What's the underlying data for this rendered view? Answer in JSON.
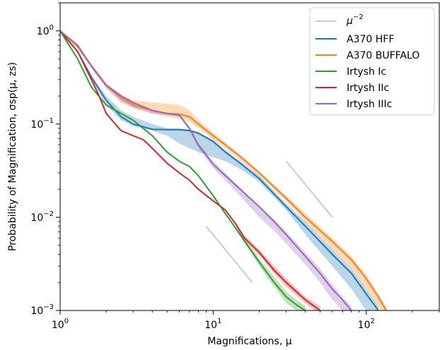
{
  "chart_data": {
    "type": "line",
    "xlabel": "Magnifications, μ",
    "ylabel": "Probability of Magnification, σsp(μ, zs)",
    "xscale": "log",
    "yscale": "log",
    "xlim": [
      1,
      300
    ],
    "ylim": [
      0.001,
      2
    ],
    "x_ticks": [
      {
        "value": 1,
        "base": "10",
        "exp": "0"
      },
      {
        "value": 10,
        "base": "10",
        "exp": "1"
      },
      {
        "value": 100,
        "base": "10",
        "exp": "2"
      }
    ],
    "y_ticks": [
      {
        "value": 1,
        "base": "10",
        "exp": "0"
      },
      {
        "value": 0.1,
        "base": "10",
        "exp": "−1"
      },
      {
        "value": 0.01,
        "base": "10",
        "exp": "−2"
      },
      {
        "value": 0.001,
        "base": "10",
        "exp": "−3"
      }
    ],
    "legend_position": "top-right",
    "reference_label": "μ",
    "reference_exp": "−2",
    "reference_color": "#cccccc",
    "reference_lines": [
      {
        "x": [
          9,
          18
        ],
        "y": [
          0.008,
          0.002
        ]
      },
      {
        "x": [
          30,
          60
        ],
        "y": [
          0.04,
          0.01
        ]
      }
    ],
    "series": [
      {
        "name": "A370 HFF",
        "color": "#1f77b4",
        "x": [
          1,
          1.3,
          1.6,
          2,
          2.5,
          3,
          4,
          5,
          6,
          7,
          8,
          10,
          12,
          15,
          20,
          30,
          40,
          60,
          80,
          100,
          120
        ],
        "y": [
          1,
          0.6,
          0.32,
          0.18,
          0.12,
          0.1,
          0.088,
          0.087,
          0.087,
          0.085,
          0.08,
          0.065,
          0.05,
          0.038,
          0.026,
          0.013,
          0.008,
          0.004,
          0.0025,
          0.0015,
          0.001
        ],
        "band_upper": [
          1,
          0.6,
          0.33,
          0.2,
          0.14,
          0.12,
          0.1,
          0.09,
          0.09,
          0.088,
          0.082,
          0.068,
          0.053,
          0.04,
          0.028,
          0.014,
          0.009,
          0.0045,
          0.0028,
          0.0017,
          0.0011
        ],
        "band_lower": [
          1,
          0.6,
          0.3,
          0.16,
          0.11,
          0.095,
          0.085,
          0.075,
          0.062,
          0.055,
          0.05,
          0.044,
          0.04,
          0.033,
          0.024,
          0.012,
          0.0065,
          0.003,
          0.0017,
          0.001,
          0.0006
        ]
      },
      {
        "name": "A370 BUFFALO",
        "color": "#ff7f0e",
        "x": [
          1,
          1.3,
          1.6,
          2,
          2.5,
          3,
          4,
          5,
          6,
          7,
          8,
          10,
          12,
          15,
          20,
          30,
          40,
          60,
          80,
          100,
          120,
          135
        ],
        "y": [
          1,
          0.68,
          0.42,
          0.26,
          0.19,
          0.16,
          0.14,
          0.13,
          0.128,
          0.12,
          0.1,
          0.075,
          0.06,
          0.045,
          0.03,
          0.016,
          0.01,
          0.0055,
          0.0035,
          0.0022,
          0.0014,
          0.001
        ],
        "band_upper": [
          1,
          0.7,
          0.45,
          0.28,
          0.2,
          0.18,
          0.17,
          0.165,
          0.16,
          0.14,
          0.11,
          0.08,
          0.063,
          0.047,
          0.031,
          0.017,
          0.011,
          0.006,
          0.0038,
          0.0024,
          0.0015,
          0.0011
        ],
        "band_lower": [
          1,
          0.65,
          0.4,
          0.25,
          0.18,
          0.15,
          0.13,
          0.12,
          0.115,
          0.105,
          0.09,
          0.068,
          0.055,
          0.041,
          0.028,
          0.015,
          0.009,
          0.0045,
          0.0028,
          0.0017,
          0.0011,
          0.0008
        ]
      },
      {
        "name": "Irtysh Ic",
        "color": "#2ca02c",
        "x": [
          1,
          1.3,
          1.6,
          2,
          2.5,
          3,
          4,
          5,
          6,
          7,
          8,
          10,
          12,
          15,
          20,
          25,
          30,
          35,
          40
        ],
        "y": [
          1,
          0.5,
          0.25,
          0.16,
          0.13,
          0.11,
          0.075,
          0.05,
          0.04,
          0.035,
          0.028,
          0.017,
          0.011,
          0.0065,
          0.0033,
          0.002,
          0.0014,
          0.00115,
          0.001
        ],
        "band_upper": [
          1,
          0.5,
          0.25,
          0.16,
          0.13,
          0.11,
          0.075,
          0.05,
          0.04,
          0.035,
          0.028,
          0.017,
          0.011,
          0.0068,
          0.0036,
          0.0023,
          0.0016,
          0.0013,
          0.00112
        ],
        "band_lower": [
          1,
          0.5,
          0.25,
          0.16,
          0.13,
          0.11,
          0.075,
          0.05,
          0.04,
          0.035,
          0.028,
          0.017,
          0.011,
          0.0062,
          0.003,
          0.0018,
          0.0012,
          0.001,
          0.0009
        ]
      },
      {
        "name": "Irtysh IIc",
        "color": "#d62728",
        "x": [
          1,
          1.3,
          1.6,
          1.8,
          2,
          2.5,
          3,
          3.5,
          4,
          5,
          6,
          7,
          8,
          10,
          12,
          14,
          16,
          20,
          25,
          30,
          40,
          50
        ],
        "y": [
          1,
          0.6,
          0.3,
          0.2,
          0.13,
          0.085,
          0.075,
          0.068,
          0.055,
          0.038,
          0.03,
          0.025,
          0.02,
          0.015,
          0.012,
          0.0085,
          0.006,
          0.0042,
          0.0027,
          0.002,
          0.0013,
          0.001
        ],
        "band_upper": [
          1,
          0.6,
          0.3,
          0.2,
          0.13,
          0.085,
          0.075,
          0.068,
          0.055,
          0.038,
          0.03,
          0.025,
          0.02,
          0.015,
          0.012,
          0.0088,
          0.0064,
          0.0045,
          0.003,
          0.0022,
          0.0014,
          0.0011
        ],
        "band_lower": [
          1,
          0.6,
          0.3,
          0.2,
          0.13,
          0.085,
          0.075,
          0.068,
          0.055,
          0.038,
          0.03,
          0.025,
          0.02,
          0.015,
          0.012,
          0.0082,
          0.0056,
          0.0039,
          0.0025,
          0.0018,
          0.0012,
          0.0009
        ]
      },
      {
        "name": "Irtysh IIIc",
        "color": "#9467bd",
        "x": [
          1,
          1.3,
          1.6,
          2,
          2.5,
          3,
          4,
          5,
          6,
          7,
          8,
          10,
          12,
          15,
          20,
          25,
          30,
          40,
          50,
          60,
          70,
          80
        ],
        "y": [
          1,
          0.7,
          0.42,
          0.26,
          0.2,
          0.17,
          0.14,
          0.13,
          0.125,
          0.09,
          0.06,
          0.037,
          0.028,
          0.02,
          0.013,
          0.009,
          0.0065,
          0.0038,
          0.0025,
          0.0017,
          0.0013,
          0.001
        ],
        "band_upper": [
          1,
          0.7,
          0.43,
          0.27,
          0.21,
          0.175,
          0.14,
          0.13,
          0.125,
          0.09,
          0.062,
          0.04,
          0.03,
          0.021,
          0.013,
          0.0095,
          0.007,
          0.0042,
          0.0028,
          0.0019,
          0.0014,
          0.0011
        ],
        "band_lower": [
          1,
          0.7,
          0.4,
          0.24,
          0.17,
          0.15,
          0.13,
          0.125,
          0.12,
          0.085,
          0.055,
          0.034,
          0.025,
          0.017,
          0.01,
          0.0072,
          0.0052,
          0.0031,
          0.002,
          0.0013,
          0.001,
          0.0008
        ]
      }
    ]
  }
}
